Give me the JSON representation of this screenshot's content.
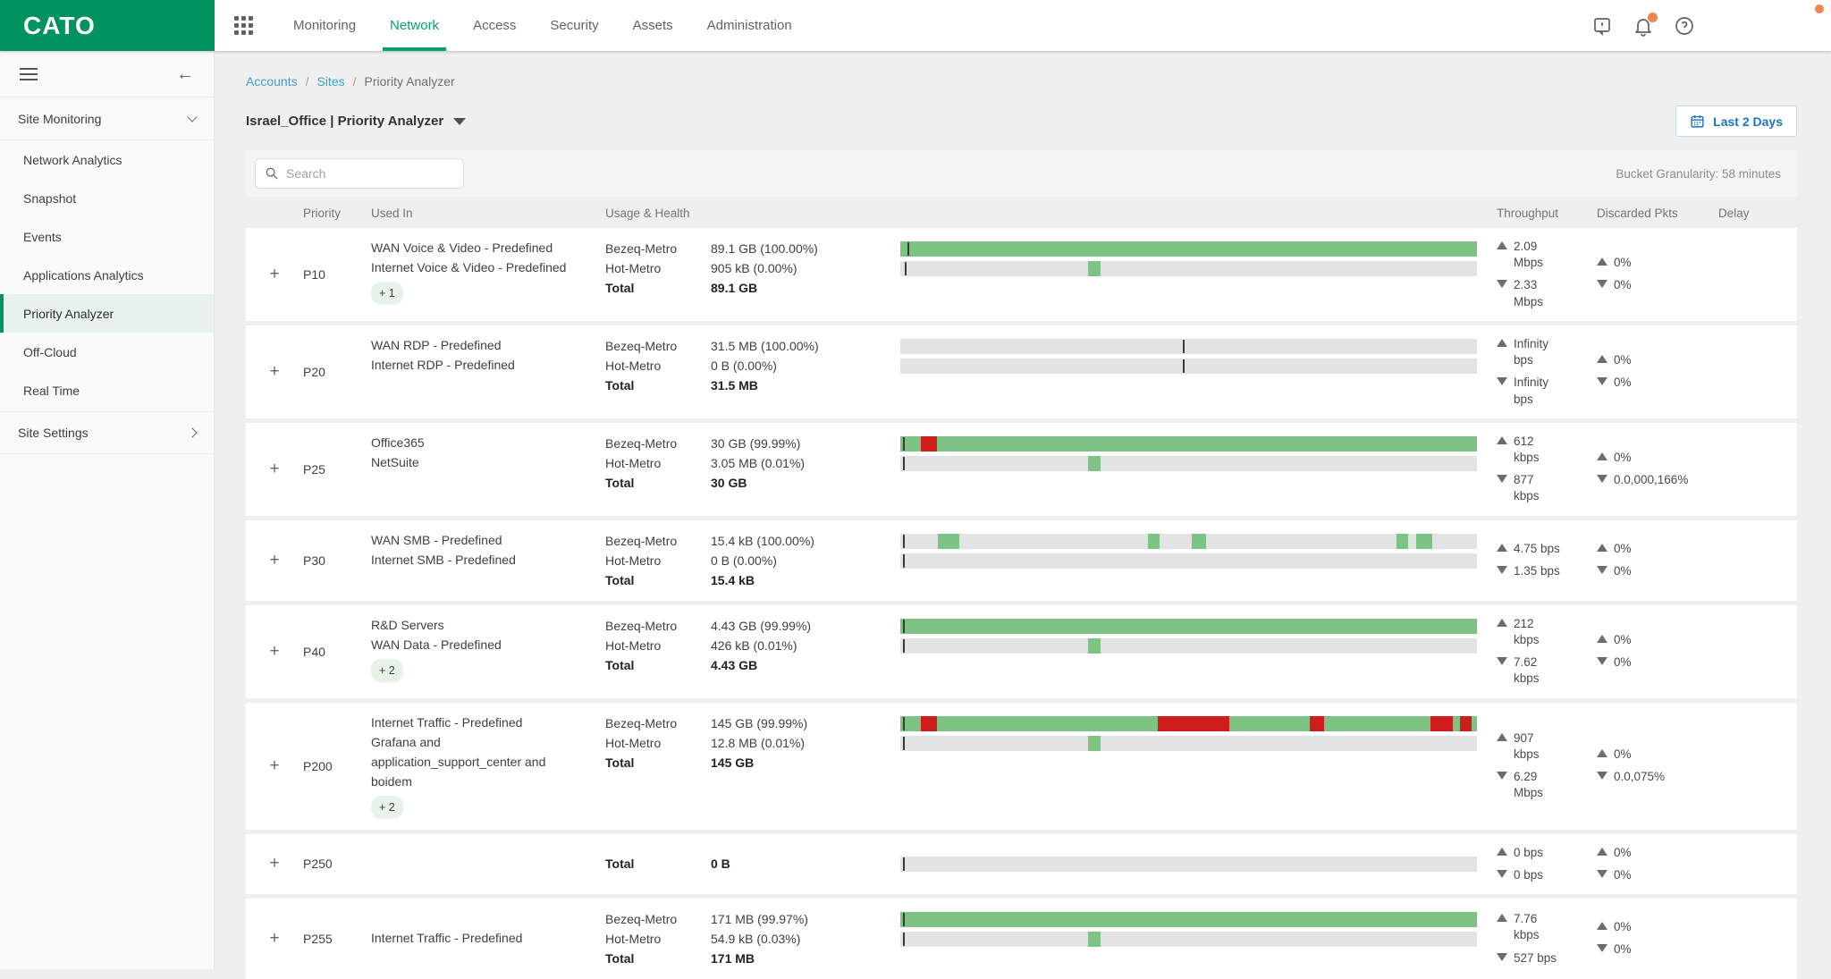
{
  "brand": {
    "logo_text": "CATO"
  },
  "topnav": {
    "items": [
      {
        "label": "Monitoring",
        "active": false
      },
      {
        "label": "Network",
        "active": true
      },
      {
        "label": "Access",
        "active": false
      },
      {
        "label": "Security",
        "active": false
      },
      {
        "label": "Assets",
        "active": false
      },
      {
        "label": "Administration",
        "active": false
      }
    ],
    "icons": [
      "feedback-icon",
      "notifications-bell-icon",
      "help-icon"
    ]
  },
  "sidebar": {
    "section_label": "Site Monitoring",
    "items": [
      {
        "label": "Network Analytics",
        "active": false
      },
      {
        "label": "Snapshot",
        "active": false
      },
      {
        "label": "Events",
        "active": false
      },
      {
        "label": "Applications Analytics",
        "active": false
      },
      {
        "label": "Priority Analyzer",
        "active": true
      },
      {
        "label": "Off-Cloud",
        "active": false
      },
      {
        "label": "Real Time",
        "active": false
      }
    ],
    "footer_label": "Site Settings"
  },
  "breadcrumb": {
    "separator": "/",
    "items": [
      {
        "label": "Accounts"
      },
      {
        "label": "Sites"
      },
      {
        "label": "Priority Analyzer"
      }
    ]
  },
  "page": {
    "title": "Israel_Office | Priority Analyzer",
    "time_range_label": "Last 2 Days",
    "search_placeholder": "Search",
    "bucket_granularity": "Bucket Granularity: 58 minutes"
  },
  "table": {
    "expand_symbol": "+",
    "headers": [
      "Priority",
      "Used In",
      "Usage & Health",
      "Throughput",
      "Discarded Pkts",
      "Delay"
    ],
    "rows": [
      {
        "priority": "P10",
        "used_in": [
          "WAN Voice & Video - Predefined",
          "Internet Voice & Video - Predefined"
        ],
        "badge": "+ 1",
        "usage": [
          {
            "label": "Bezeq-Metro",
            "value": "89.1 GB (100.00%)"
          },
          {
            "label": "Hot-Metro",
            "value": "905 kB (0.00%)"
          },
          {
            "label": "Total",
            "value": "89.1 GB"
          }
        ],
        "bars": [
          {
            "base": "#7dc383",
            "marker": 1.3,
            "segments": []
          },
          {
            "base": "#e3e3e3",
            "marker": 0.8,
            "segments": [
              {
                "c": "#7dc383",
                "s": 32.5,
                "e": 34.8
              }
            ]
          }
        ],
        "throughput": {
          "up": "2.09\nMbps",
          "down": "2.33\nMbps"
        },
        "discarded": {
          "up": "0%",
          "down": "0%"
        }
      },
      {
        "priority": "P20",
        "used_in": [
          "WAN RDP - Predefined",
          "Internet RDP - Predefined"
        ],
        "usage": [
          {
            "label": "Bezeq-Metro",
            "value": "31.5 MB (100.00%)"
          },
          {
            "label": "Hot-Metro",
            "value": "0 B (0.00%)"
          },
          {
            "label": "Total",
            "value": "31.5 MB"
          }
        ],
        "bars": [
          {
            "base": "#e3e3e3",
            "marker": 49,
            "segments": []
          },
          {
            "base": "#e3e3e3",
            "marker": 49,
            "segments": []
          }
        ],
        "throughput": {
          "up": "Infinity\nbps",
          "down": "Infinity\nbps"
        },
        "discarded": {
          "up": "0%",
          "down": "0%"
        }
      },
      {
        "priority": "P25",
        "used_in": [
          "Office365",
          "NetSuite"
        ],
        "usage": [
          {
            "label": "Bezeq-Metro",
            "value": "30 GB (99.99%)"
          },
          {
            "label": "Hot-Metro",
            "value": "3.05 MB (0.01%)"
          },
          {
            "label": "Total",
            "value": "30 GB"
          }
        ],
        "bars": [
          {
            "base": "#7dc383",
            "marker": 0.4,
            "segments": [
              {
                "c": "#cf1d1d",
                "s": 3.6,
                "e": 6.4
              }
            ]
          },
          {
            "base": "#e3e3e3",
            "marker": 0.4,
            "segments": [
              {
                "c": "#7dc383",
                "s": 32.5,
                "e": 34.8
              }
            ]
          }
        ],
        "throughput": {
          "up": "612\nkbps",
          "down": "877\nkbps"
        },
        "discarded": {
          "up": "0%",
          "down": "0.0,000,166%"
        }
      },
      {
        "priority": "P30",
        "used_in": [
          "WAN SMB - Predefined",
          "Internet SMB - Predefined"
        ],
        "usage": [
          {
            "label": "Bezeq-Metro",
            "value": "15.4 kB (100.00%)"
          },
          {
            "label": "Hot-Metro",
            "value": "0 B (0.00%)"
          },
          {
            "label": "Total",
            "value": "15.4 kB"
          }
        ],
        "bars": [
          {
            "base": "#e3e3e3",
            "marker": 0.4,
            "segments": [
              {
                "c": "#7dc383",
                "s": 6.5,
                "e": 10.3
              },
              {
                "c": "#7dc383",
                "s": 43.0,
                "e": 45.0
              },
              {
                "c": "#7dc383",
                "s": 50.5,
                "e": 53.0
              },
              {
                "c": "#7dc383",
                "s": 86.0,
                "e": 88.0
              },
              {
                "c": "#7dc383",
                "s": 89.5,
                "e": 92.3
              }
            ]
          },
          {
            "base": "#e3e3e3",
            "marker": 0.4,
            "segments": []
          }
        ],
        "throughput": {
          "up": "4.75 bps",
          "down": "1.35 bps"
        },
        "discarded": {
          "up": "0%",
          "down": "0%"
        }
      },
      {
        "priority": "P40",
        "used_in": [
          "R&D Servers",
          "WAN Data - Predefined"
        ],
        "badge": "+ 2",
        "usage": [
          {
            "label": "Bezeq-Metro",
            "value": "4.43 GB (99.99%)"
          },
          {
            "label": "Hot-Metro",
            "value": "426 kB (0.01%)"
          },
          {
            "label": "Total",
            "value": "4.43 GB"
          }
        ],
        "bars": [
          {
            "base": "#7dc383",
            "marker": 0.4,
            "segments": []
          },
          {
            "base": "#e3e3e3",
            "marker": 0.4,
            "segments": [
              {
                "c": "#7dc383",
                "s": 32.5,
                "e": 34.8
              }
            ]
          }
        ],
        "throughput": {
          "up": "212\nkbps",
          "down": "7.62\nkbps"
        },
        "discarded": {
          "up": "0%",
          "down": "0%"
        }
      },
      {
        "priority": "P200",
        "used_in": [
          "Internet Traffic - Predefined",
          "Grafana and",
          "application_support_center and",
          "boidem"
        ],
        "badge": "+ 2",
        "usage": [
          {
            "label": "Bezeq-Metro",
            "value": "145 GB (99.99%)"
          },
          {
            "label": "Hot-Metro",
            "value": "12.8 MB (0.01%)"
          },
          {
            "label": "Total",
            "value": "145 GB"
          }
        ],
        "bars": [
          {
            "base": "#7dc383",
            "marker": 0.4,
            "segments": [
              {
                "c": "#cf1d1d",
                "s": 3.6,
                "e": 6.4
              },
              {
                "c": "#cf1d1d",
                "s": 44.7,
                "e": 57.0
              },
              {
                "c": "#cf1d1d",
                "s": 71.0,
                "e": 73.5
              },
              {
                "c": "#cf1d1d",
                "s": 92.0,
                "e": 95.8
              },
              {
                "c": "#cf1d1d",
                "s": 97.0,
                "e": 99.0
              }
            ]
          },
          {
            "base": "#e3e3e3",
            "marker": 0.4,
            "segments": [
              {
                "c": "#7dc383",
                "s": 32.5,
                "e": 34.8
              }
            ]
          }
        ],
        "throughput": {
          "up": "907\nkbps",
          "down": "6.29\nMbps"
        },
        "discarded": {
          "up": "0%",
          "down": "0.0,075%"
        }
      },
      {
        "priority": "P250",
        "used_in": [],
        "usage": [
          {
            "label": "Total",
            "value": "0 B"
          }
        ],
        "bars": [
          {
            "base": "#e3e3e3",
            "marker": 0.4,
            "segments": []
          }
        ],
        "throughput": {
          "up": "0 bps",
          "down": "0 bps"
        },
        "discarded": {
          "up": "0%",
          "down": "0%"
        }
      },
      {
        "priority": "P255",
        "used_in": [
          "Internet Traffic - Predefined"
        ],
        "usage": [
          {
            "label": "Bezeq-Metro",
            "value": "171 MB (99.97%)"
          },
          {
            "label": "Hot-Metro",
            "value": "54.9 kB (0.03%)"
          },
          {
            "label": "Total",
            "value": "171 MB"
          }
        ],
        "bars": [
          {
            "base": "#7dc383",
            "marker": 0.4,
            "segments": []
          },
          {
            "base": "#e3e3e3",
            "marker": 0.4,
            "segments": [
              {
                "c": "#7dc383",
                "s": 32.5,
                "e": 34.8
              }
            ]
          }
        ],
        "throughput": {
          "up": "7.76\nkbps",
          "down": "527 bps"
        },
        "discarded": {
          "up": "0%",
          "down": "0%"
        }
      }
    ]
  },
  "colors": {
    "brand_green": "#00935e",
    "nav_active_green": "#00a36c",
    "bar_green": "#7dc383",
    "bar_red": "#cf1d1d",
    "bar_gray": "#e3e3e3",
    "link_blue": "#3f9fc6",
    "button_blue": "#1c75bc",
    "notification_orange": "#f0854f"
  }
}
